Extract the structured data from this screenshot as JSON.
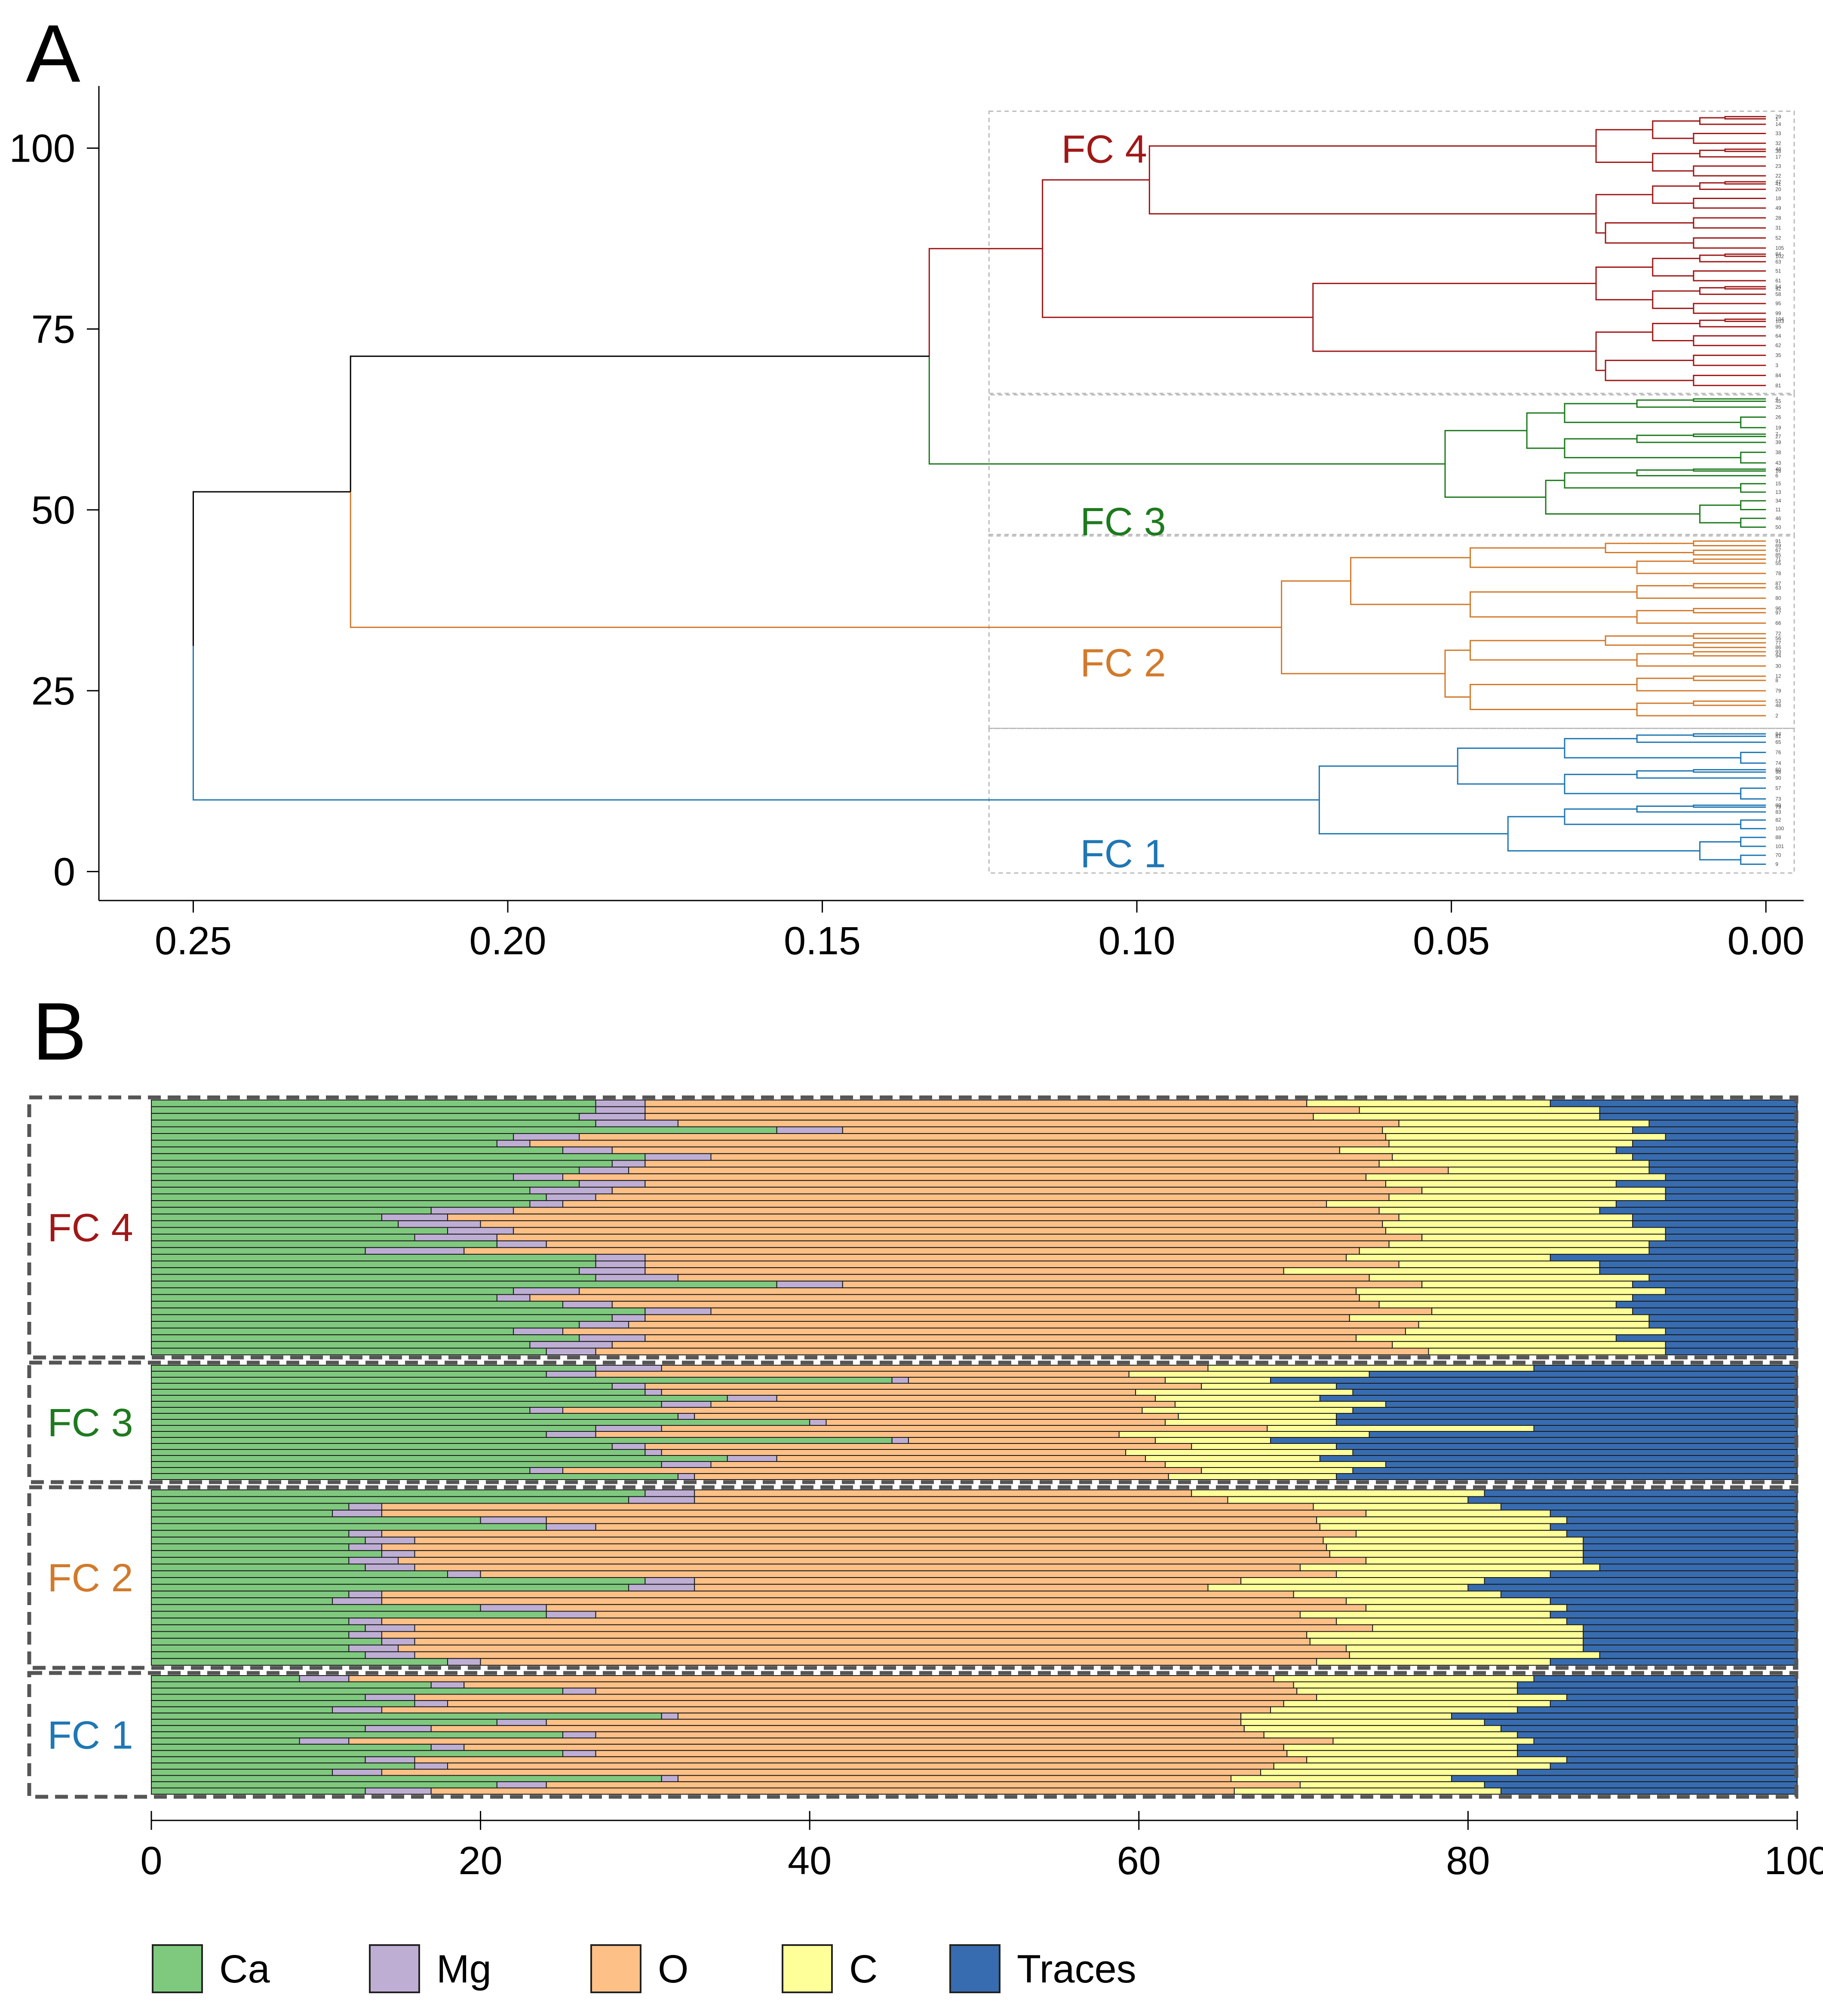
{
  "panels": {
    "a": "A",
    "b": "B"
  },
  "colors": {
    "fc1": "#1f77b4",
    "fc2": "#d27a2c",
    "fc3": "#1e7a1e",
    "fc4": "#a01818",
    "ca": "#7fc97f",
    "mg": "#beaed4",
    "o": "#fdc086",
    "c": "#ffff99",
    "traces": "#386cb0"
  },
  "chart_data": [
    {
      "type": "dendrogram",
      "panel": "A",
      "x_ticks": [
        0.25,
        0.2,
        0.15,
        0.1,
        0.05,
        0.0
      ],
      "x_tick_labels": [
        "0.25",
        "0.20",
        "0.15",
        "0.10",
        "0.05",
        "0.00"
      ],
      "y_ticks": [
        0,
        25,
        50,
        75,
        100
      ],
      "y_tick_labels": [
        "0",
        "25",
        "50",
        "75",
        "100"
      ],
      "xlim": [
        0.265,
        -0.006
      ],
      "ylim": [
        -4,
        108
      ],
      "clusters": [
        {
          "name": "FC 1",
          "y_range": [
            0.4,
            19.2
          ],
          "root_height": 0.071,
          "n": 19,
          "sub_heights": [
            0.049,
            0.041
          ]
        },
        {
          "name": "FC 2",
          "y_range": [
            20.4,
            46.0
          ],
          "root_height": 0.077,
          "n": 26,
          "sub_heights": [
            0.066,
            0.051,
            0.047
          ]
        },
        {
          "name": "FC 3",
          "y_range": [
            47.0,
            65.5
          ],
          "root_height": 0.051,
          "n": 19,
          "sub_heights": [
            0.038,
            0.031
          ]
        },
        {
          "name": "FC 4",
          "y_range": [
            66.5,
            104.5
          ],
          "root_height": 0.115,
          "n": 38,
          "sub_heights": [
            0.098,
            0.072,
            0.027
          ]
        }
      ],
      "merges": [
        {
          "left": "FC 4",
          "right": "FC 3",
          "height": 0.133
        },
        {
          "left": "FC4+FC3",
          "right": "FC 2",
          "height": 0.225
        },
        {
          "left": "FC4+FC3+FC2",
          "right": "FC 1",
          "height": 0.25
        }
      ],
      "leaf_labels": [
        "84",
        "81",
        "65",
        "76",
        "74",
        "60",
        "98",
        "90",
        "57",
        "73",
        "89",
        "79",
        "83",
        "82",
        "100",
        "88",
        "101",
        "70",
        "9",
        "91",
        "69",
        "67",
        "85",
        "71",
        "55",
        "78",
        "87",
        "63",
        "80",
        "96",
        "97",
        "66",
        "72",
        "56",
        "77",
        "86",
        "93",
        "94",
        "30",
        "12",
        "8",
        "79",
        "53",
        "48",
        "2",
        "4",
        "45",
        "25",
        "26",
        "19",
        "7",
        "27",
        "39",
        "38",
        "43",
        "40",
        "16",
        "6",
        "15",
        "13",
        "34",
        "11",
        "46",
        "50",
        "29",
        "1",
        "14",
        "33",
        "32",
        "44",
        "36",
        "17",
        "23",
        "22",
        "42",
        "41",
        "20",
        "18",
        "49",
        "28",
        "31",
        "52",
        "105",
        "84",
        "102",
        "63",
        "51",
        "61",
        "54",
        "92",
        "58",
        "95",
        "99",
        "104",
        "103",
        "95",
        "64",
        "62",
        "35",
        "3"
      ]
    },
    {
      "type": "stacked-bar",
      "panel": "B",
      "orientation": "horizontal",
      "x_ticks": [
        0,
        20,
        40,
        60,
        80,
        100
      ],
      "x_tick_labels": [
        "0",
        "20",
        "40",
        "60",
        "80",
        "100"
      ],
      "xlim": [
        0,
        100
      ],
      "series_names": [
        "Ca",
        "Mg",
        "O",
        "C",
        "Traces"
      ],
      "groups": [
        {
          "name": "FC 4",
          "n": 38,
          "profiles": [
            [
              27,
              3,
              42,
              13,
              15
            ],
            [
              27,
              3,
              44,
              14,
              12
            ],
            [
              26,
              4,
              40,
              18,
              12
            ],
            [
              27,
              5,
              42,
              17,
              9
            ],
            [
              38,
              4,
              34,
              14,
              10
            ],
            [
              22,
              4,
              49,
              17,
              8
            ],
            [
              21,
              2,
              51,
              16,
              10
            ],
            [
              25,
              3,
              46,
              15,
              11
            ],
            [
              30,
              4,
              42,
              14,
              10
            ],
            [
              28,
              2,
              44,
              17,
              9
            ],
            [
              26,
              3,
              48,
              14,
              9
            ],
            [
              22,
              3,
              50,
              17,
              8
            ],
            [
              26,
              4,
              45,
              14,
              11
            ],
            [
              23,
              5,
              48,
              16,
              8
            ],
            [
              24,
              3,
              50,
              15,
              8
            ],
            [
              23,
              2,
              47,
              17,
              11
            ],
            [
              17,
              5,
              52,
              14,
              12
            ],
            [
              14,
              4,
              56,
              16,
              10
            ],
            [
              15,
              5,
              56,
              14,
              10
            ],
            [
              18,
              4,
              53,
              17,
              8
            ],
            [
              16,
              5,
              55,
              16,
              8
            ],
            [
              21,
              3,
              53,
              14,
              9
            ],
            [
              13,
              6,
              55,
              17,
              9
            ]
          ]
        },
        {
          "name": "FC 3",
          "n": 19,
          "profiles": [
            [
              27,
              4,
              35,
              18,
              16
            ],
            [
              24,
              3,
              33,
              14,
              26
            ],
            [
              45,
              1,
              15,
              7,
              32
            ],
            [
              28,
              2,
              32,
              10,
              28
            ],
            [
              30,
              1,
              30,
              12,
              27
            ],
            [
              35,
              3,
              23,
              10,
              29
            ],
            [
              31,
              3,
              27,
              14,
              25
            ],
            [
              23,
              2,
              37,
              11,
              27
            ],
            [
              32,
              1,
              30,
              9,
              28
            ],
            [
              40,
              1,
              20,
              11,
              28
            ]
          ]
        },
        {
          "name": "FC 2",
          "n": 26,
          "profiles": [
            [
              30,
              3,
              32,
              16,
              19
            ],
            [
              29,
              4,
              33,
              14,
              20
            ],
            [
              12,
              2,
              56,
              12,
              18
            ],
            [
              11,
              3,
              58,
              13,
              15
            ],
            [
              20,
              4,
              48,
              14,
              14
            ],
            [
              24,
              3,
              44,
              14,
              15
            ],
            [
              12,
              2,
              58,
              14,
              14
            ],
            [
              13,
              3,
              57,
              14,
              13
            ],
            [
              12,
              2,
              58,
              15,
              13
            ],
            [
              14,
              2,
              55,
              16,
              13
            ],
            [
              12,
              3,
              57,
              15,
              13
            ],
            [
              13,
              3,
              55,
              17,
              12
            ],
            [
              18,
              2,
              52,
              13,
              15
            ]
          ]
        },
        {
          "name": "FC 1",
          "n": 19,
          "profiles": [
            [
              9,
              3,
              58,
              14,
              16
            ],
            [
              17,
              2,
              51,
              13,
              17
            ],
            [
              25,
              2,
              42,
              14,
              17
            ],
            [
              13,
              3,
              53,
              17,
              14
            ],
            [
              16,
              2,
              52,
              15,
              15
            ],
            [
              11,
              3,
              54,
              15,
              17
            ],
            [
              31,
              1,
              33,
              14,
              21
            ],
            [
              21,
              3,
              44,
              13,
              19
            ],
            [
              13,
              4,
              50,
              15,
              18
            ],
            [
              25,
              2,
              40,
              16,
              17
            ]
          ]
        }
      ]
    }
  ],
  "legend": [
    {
      "label": "Ca",
      "key": "ca"
    },
    {
      "label": "Mg",
      "key": "mg"
    },
    {
      "label": "O",
      "key": "o"
    },
    {
      "label": "C",
      "key": "c"
    },
    {
      "label": "Traces",
      "key": "traces"
    }
  ]
}
